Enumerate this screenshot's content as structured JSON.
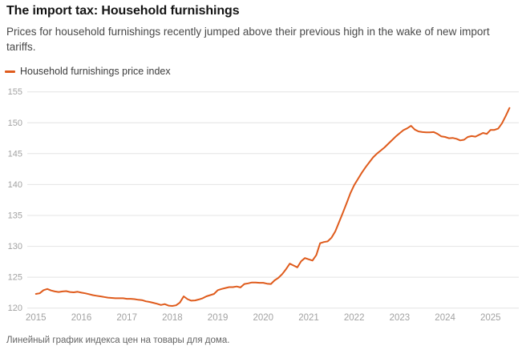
{
  "header": {
    "title": "The import tax: Household furnishings",
    "subtitle": "Prices for household furnishings recently jumped above their previous high in the wake of new import tariffs."
  },
  "legend": {
    "label": "Household furnishings price index"
  },
  "caption": "Линейный график индекса цен на товары для дома.",
  "colors": {
    "line": "#df5b1c",
    "grid": "#e4e4e4",
    "axis_text": "#a2a2a2",
    "title": "#141414",
    "subtitle": "#484848",
    "caption": "#646464"
  },
  "chart_data": {
    "type": "line",
    "title": "The import tax: Household furnishings",
    "xlabel": "",
    "ylabel": "",
    "ylim": [
      120,
      155
    ],
    "y_ticks": [
      120,
      125,
      130,
      135,
      140,
      145,
      150,
      155
    ],
    "x_ticks": [
      2015,
      2016,
      2017,
      2018,
      2019,
      2020,
      2021,
      2022,
      2023,
      2024,
      2025
    ],
    "grid": "horizontal",
    "legend_position": "top-left",
    "x_start": "2015-01",
    "x_end": "2025-06",
    "frequency": "monthly",
    "series": [
      {
        "name": "Household furnishings price index",
        "values": [
          122.3,
          122.4,
          122.9,
          123.1,
          122.85,
          122.7,
          122.6,
          122.7,
          122.75,
          122.6,
          122.55,
          122.65,
          122.5,
          122.4,
          122.25,
          122.1,
          122.0,
          121.9,
          121.8,
          121.7,
          121.65,
          121.6,
          121.6,
          121.6,
          121.5,
          121.5,
          121.45,
          121.35,
          121.3,
          121.1,
          121.0,
          120.85,
          120.7,
          120.5,
          120.65,
          120.4,
          120.35,
          120.45,
          120.9,
          121.9,
          121.45,
          121.2,
          121.25,
          121.4,
          121.6,
          121.9,
          122.1,
          122.3,
          122.9,
          123.1,
          123.25,
          123.4,
          123.4,
          123.5,
          123.35,
          123.9,
          124.0,
          124.15,
          124.15,
          124.1,
          124.1,
          123.95,
          123.9,
          124.5,
          124.9,
          125.5,
          126.3,
          127.2,
          126.9,
          126.6,
          127.6,
          128.1,
          127.9,
          127.7,
          128.6,
          130.5,
          130.7,
          130.8,
          131.4,
          132.4,
          133.9,
          135.4,
          137.0,
          138.6,
          139.9,
          140.9,
          141.9,
          142.8,
          143.6,
          144.4,
          145.0,
          145.5,
          146.0,
          146.6,
          147.2,
          147.8,
          148.3,
          148.8,
          149.1,
          149.5,
          148.9,
          148.6,
          148.5,
          148.45,
          148.45,
          148.5,
          148.2,
          147.8,
          147.7,
          147.5,
          147.55,
          147.4,
          147.15,
          147.25,
          147.7,
          147.85,
          147.75,
          148.05,
          148.35,
          148.2,
          148.85,
          148.85,
          149.05,
          149.9,
          151.1,
          152.4
        ]
      }
    ]
  }
}
